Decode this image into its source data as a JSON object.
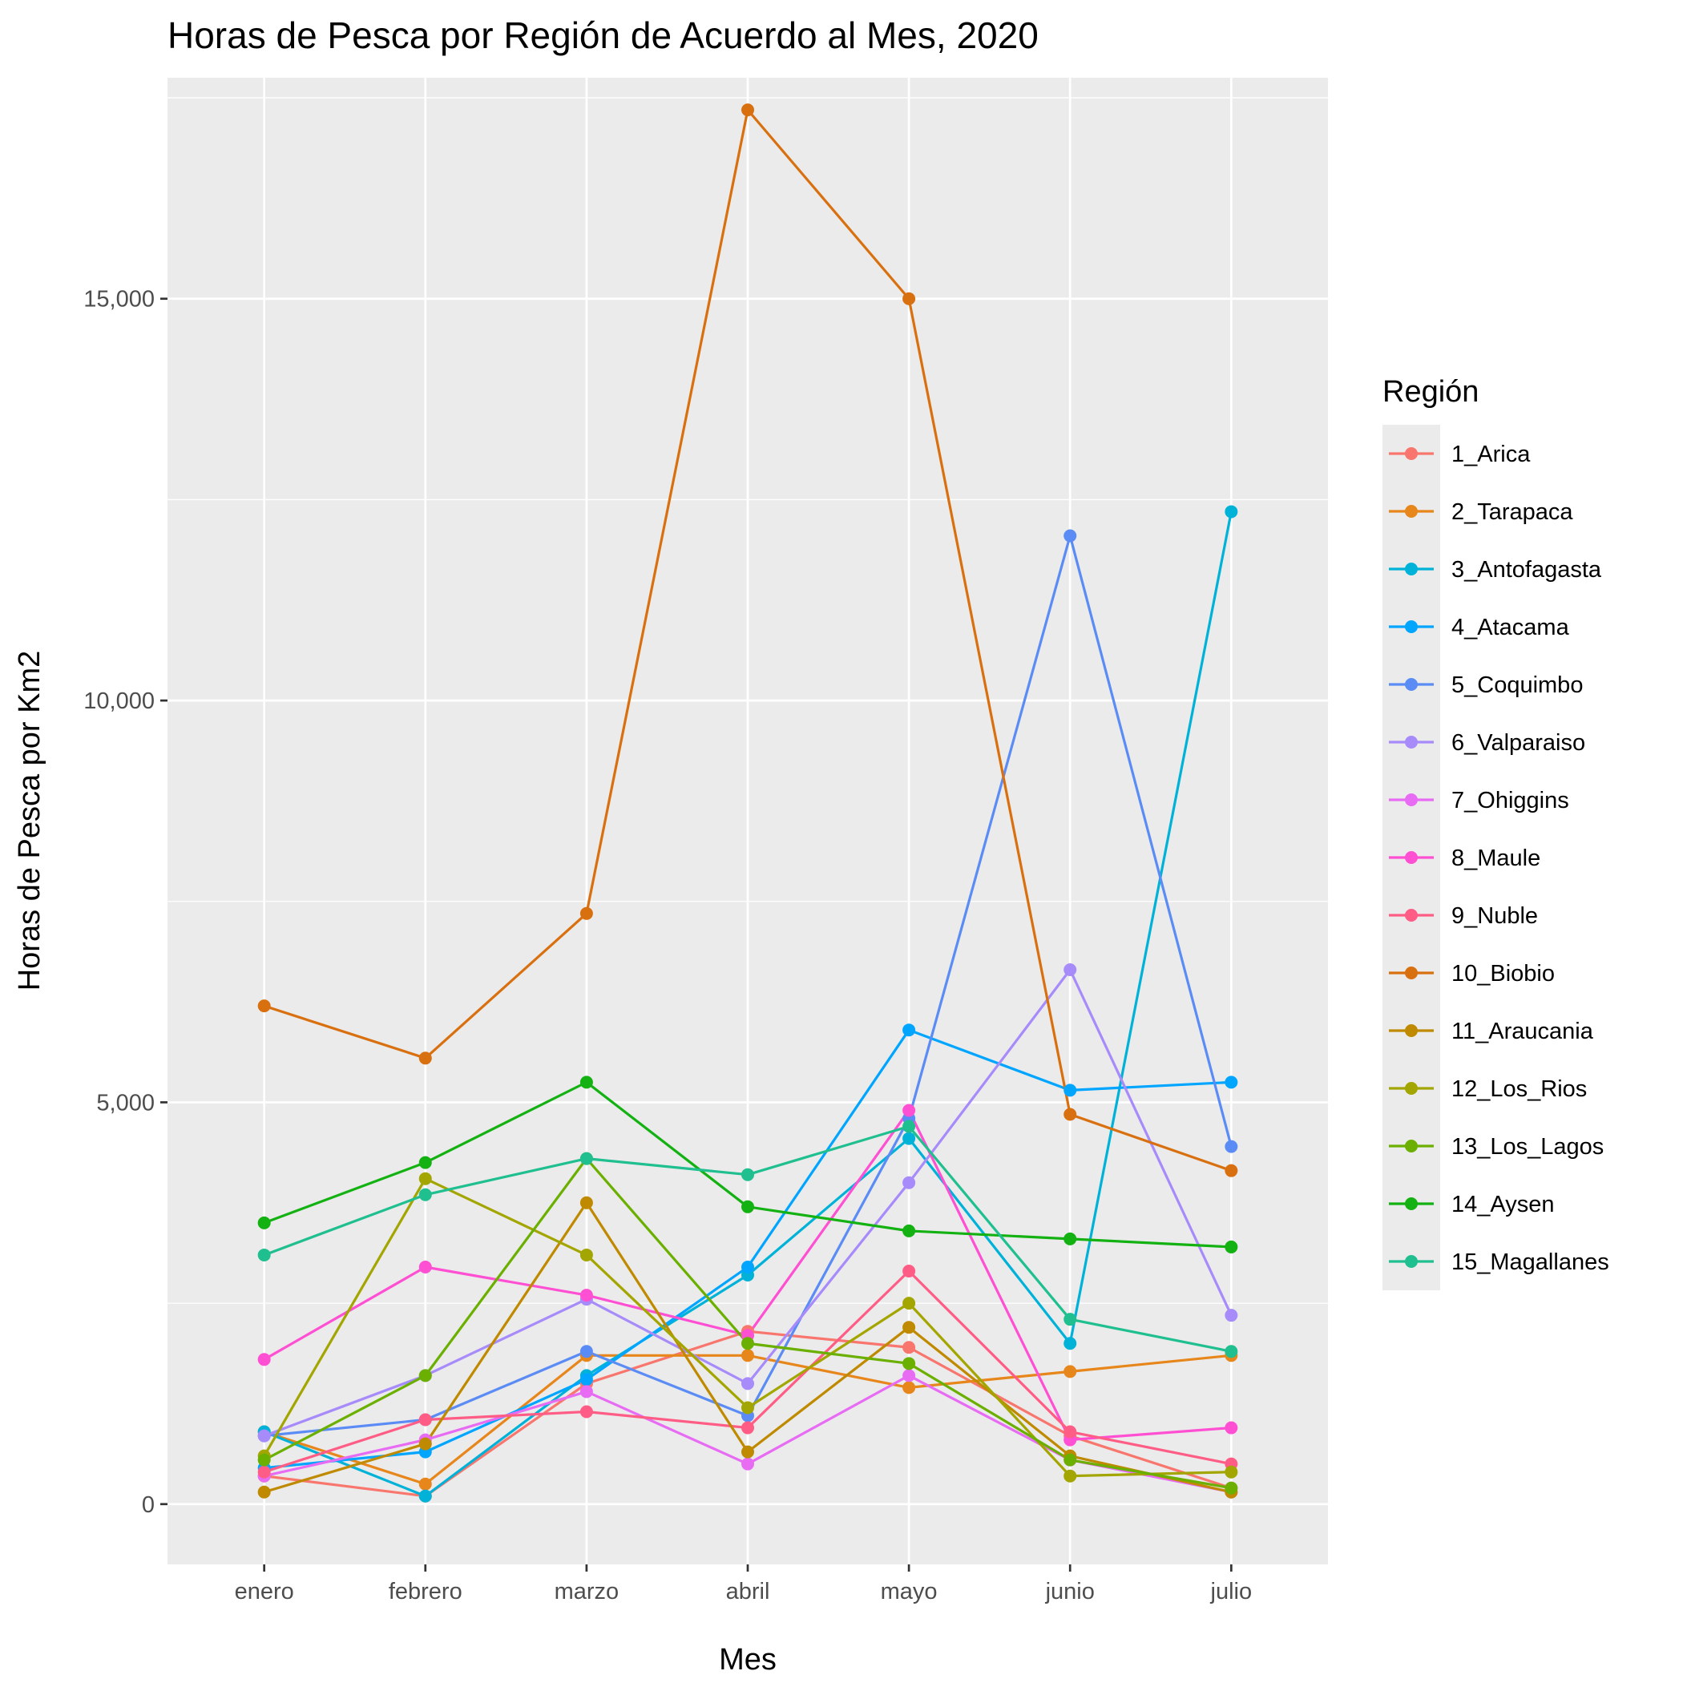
{
  "chart_data": {
    "type": "line",
    "title": "Horas de Pesca por Región de Acuerdo al Mes, 2020",
    "xlabel": "Mes",
    "ylabel": "Horas de Pesca por Km2",
    "categories": [
      "enero",
      "febrero",
      "marzo",
      "abril",
      "mayo",
      "junio",
      "julio"
    ],
    "ylim": [
      -750,
      17750
    ],
    "yticks": [
      0,
      5000,
      10000,
      15000
    ],
    "ytick_labels": [
      "0",
      "5,000",
      "10,000",
      "15,000"
    ],
    "grid": true,
    "legend": {
      "title": "Región",
      "position": "right"
    },
    "series": [
      {
        "name": "1_Arica",
        "color": "#F8766D",
        "values": [
          350,
          100,
          1500,
          2150,
          1950,
          850,
          200
        ]
      },
      {
        "name": "2_Tarapaca",
        "color": "#E7861B",
        "values": [
          900,
          250,
          1850,
          1850,
          1450,
          1650,
          1850
        ]
      },
      {
        "name": "3_Antofagasta",
        "color": "#00B2D8",
        "values": [
          900,
          100,
          1600,
          2850,
          4550,
          2000,
          12350
        ]
      },
      {
        "name": "4_Atacama",
        "color": "#00A5FF",
        "values": [
          450,
          650,
          1550,
          2950,
          5900,
          5150,
          5250
        ]
      },
      {
        "name": "5_Coquimbo",
        "color": "#5B8CF5",
        "values": [
          850,
          1050,
          1900,
          1100,
          4800,
          12050,
          4450
        ]
      },
      {
        "name": "6_Valparaiso",
        "color": "#A78BFA",
        "values": [
          850,
          1600,
          2550,
          1500,
          4000,
          6650,
          2350
        ]
      },
      {
        "name": "7_Ohiggins",
        "color": "#E76BF3",
        "values": [
          350,
          800,
          1400,
          500,
          1600,
          550,
          150
        ]
      },
      {
        "name": "8_Maule",
        "color": "#FF4FD2",
        "values": [
          1800,
          2950,
          2600,
          2100,
          4900,
          800,
          950
        ]
      },
      {
        "name": "9_Nuble",
        "color": "#FF5D85",
        "values": [
          400,
          1050,
          1150,
          950,
          2900,
          900,
          500
        ]
      },
      {
        "name": "10_Biobio",
        "color": "#D97010",
        "values": [
          6200,
          5550,
          7350,
          17350,
          15000,
          4850,
          4150
        ]
      },
      {
        "name": "11_Araucania",
        "color": "#BF8A00",
        "values": [
          150,
          750,
          3750,
          650,
          2200,
          600,
          150
        ]
      },
      {
        "name": "12_Los_Rios",
        "color": "#A3A500",
        "values": [
          600,
          4050,
          3100,
          1200,
          2500,
          350,
          400
        ]
      },
      {
        "name": "13_Los_Lagos",
        "color": "#6BAF00",
        "values": [
          550,
          1600,
          4300,
          2000,
          1750,
          550,
          200
        ]
      },
      {
        "name": "14_Aysen",
        "color": "#13B112",
        "values": [
          3500,
          4250,
          5250,
          3700,
          3400,
          3300,
          3200
        ]
      },
      {
        "name": "15_Magallanes",
        "color": "#1FBF8F",
        "values": [
          3100,
          3850,
          4300,
          4100,
          4700,
          2300,
          1900
        ]
      }
    ]
  }
}
